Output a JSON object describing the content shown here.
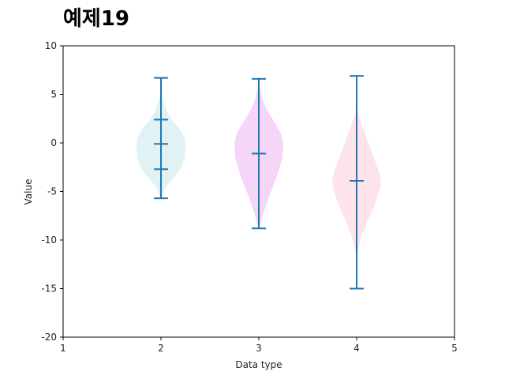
{
  "chart_data": {
    "type": "violin",
    "title": "예제19",
    "xlabel": "Data type",
    "ylabel": "Value",
    "xlim": [
      1,
      5
    ],
    "ylim": [
      -20,
      10
    ],
    "x_ticks": [
      "1",
      "2",
      "3",
      "4",
      "5"
    ],
    "y_ticks": [
      "10",
      "5",
      "0",
      "-5",
      "-10",
      "-15",
      "-20"
    ],
    "grid": false,
    "series": [
      {
        "x": 2,
        "color": "#e0f2f4",
        "max": 6.7,
        "min": -5.7,
        "quantiles": [
          2.4,
          -0.1,
          -2.7
        ],
        "density": [
          [
            -5.5,
            0.05
          ],
          [
            -4.5,
            0.2
          ],
          [
            -3.5,
            0.55
          ],
          [
            -2.5,
            0.85
          ],
          [
            -1.5,
            0.97
          ],
          [
            -0.5,
            1
          ],
          [
            0.5,
            0.97
          ],
          [
            1.5,
            0.75
          ],
          [
            2.5,
            0.4
          ],
          [
            3.5,
            0.2
          ],
          [
            4.5,
            0.07
          ],
          [
            5.2,
            0.02
          ]
        ]
      },
      {
        "x": 3,
        "color": "#f5d6f8",
        "max": 6.6,
        "min": -8.8,
        "median": -1.1,
        "density": [
          [
            -8.5,
            0.05
          ],
          [
            -7.5,
            0.15
          ],
          [
            -6,
            0.35
          ],
          [
            -4.5,
            0.58
          ],
          [
            -3,
            0.8
          ],
          [
            -1.5,
            0.97
          ],
          [
            0,
            1
          ],
          [
            1,
            0.9
          ],
          [
            2.5,
            0.55
          ],
          [
            3.5,
            0.3
          ],
          [
            4.5,
            0.15
          ],
          [
            5.8,
            0.04
          ],
          [
            6.4,
            0.01
          ]
        ]
      },
      {
        "x": 4,
        "color": "#fde4ea",
        "max": 6.9,
        "min": -15.0,
        "median": -3.9,
        "density": [
          [
            -11.5,
            0.03
          ],
          [
            -10,
            0.15
          ],
          [
            -8,
            0.45
          ],
          [
            -6.5,
            0.72
          ],
          [
            -5,
            0.93
          ],
          [
            -4,
            1
          ],
          [
            -3,
            0.93
          ],
          [
            -1.5,
            0.7
          ],
          [
            0,
            0.48
          ],
          [
            1.5,
            0.27
          ],
          [
            2.5,
            0.12
          ],
          [
            3.4,
            0.03
          ]
        ]
      }
    ]
  }
}
